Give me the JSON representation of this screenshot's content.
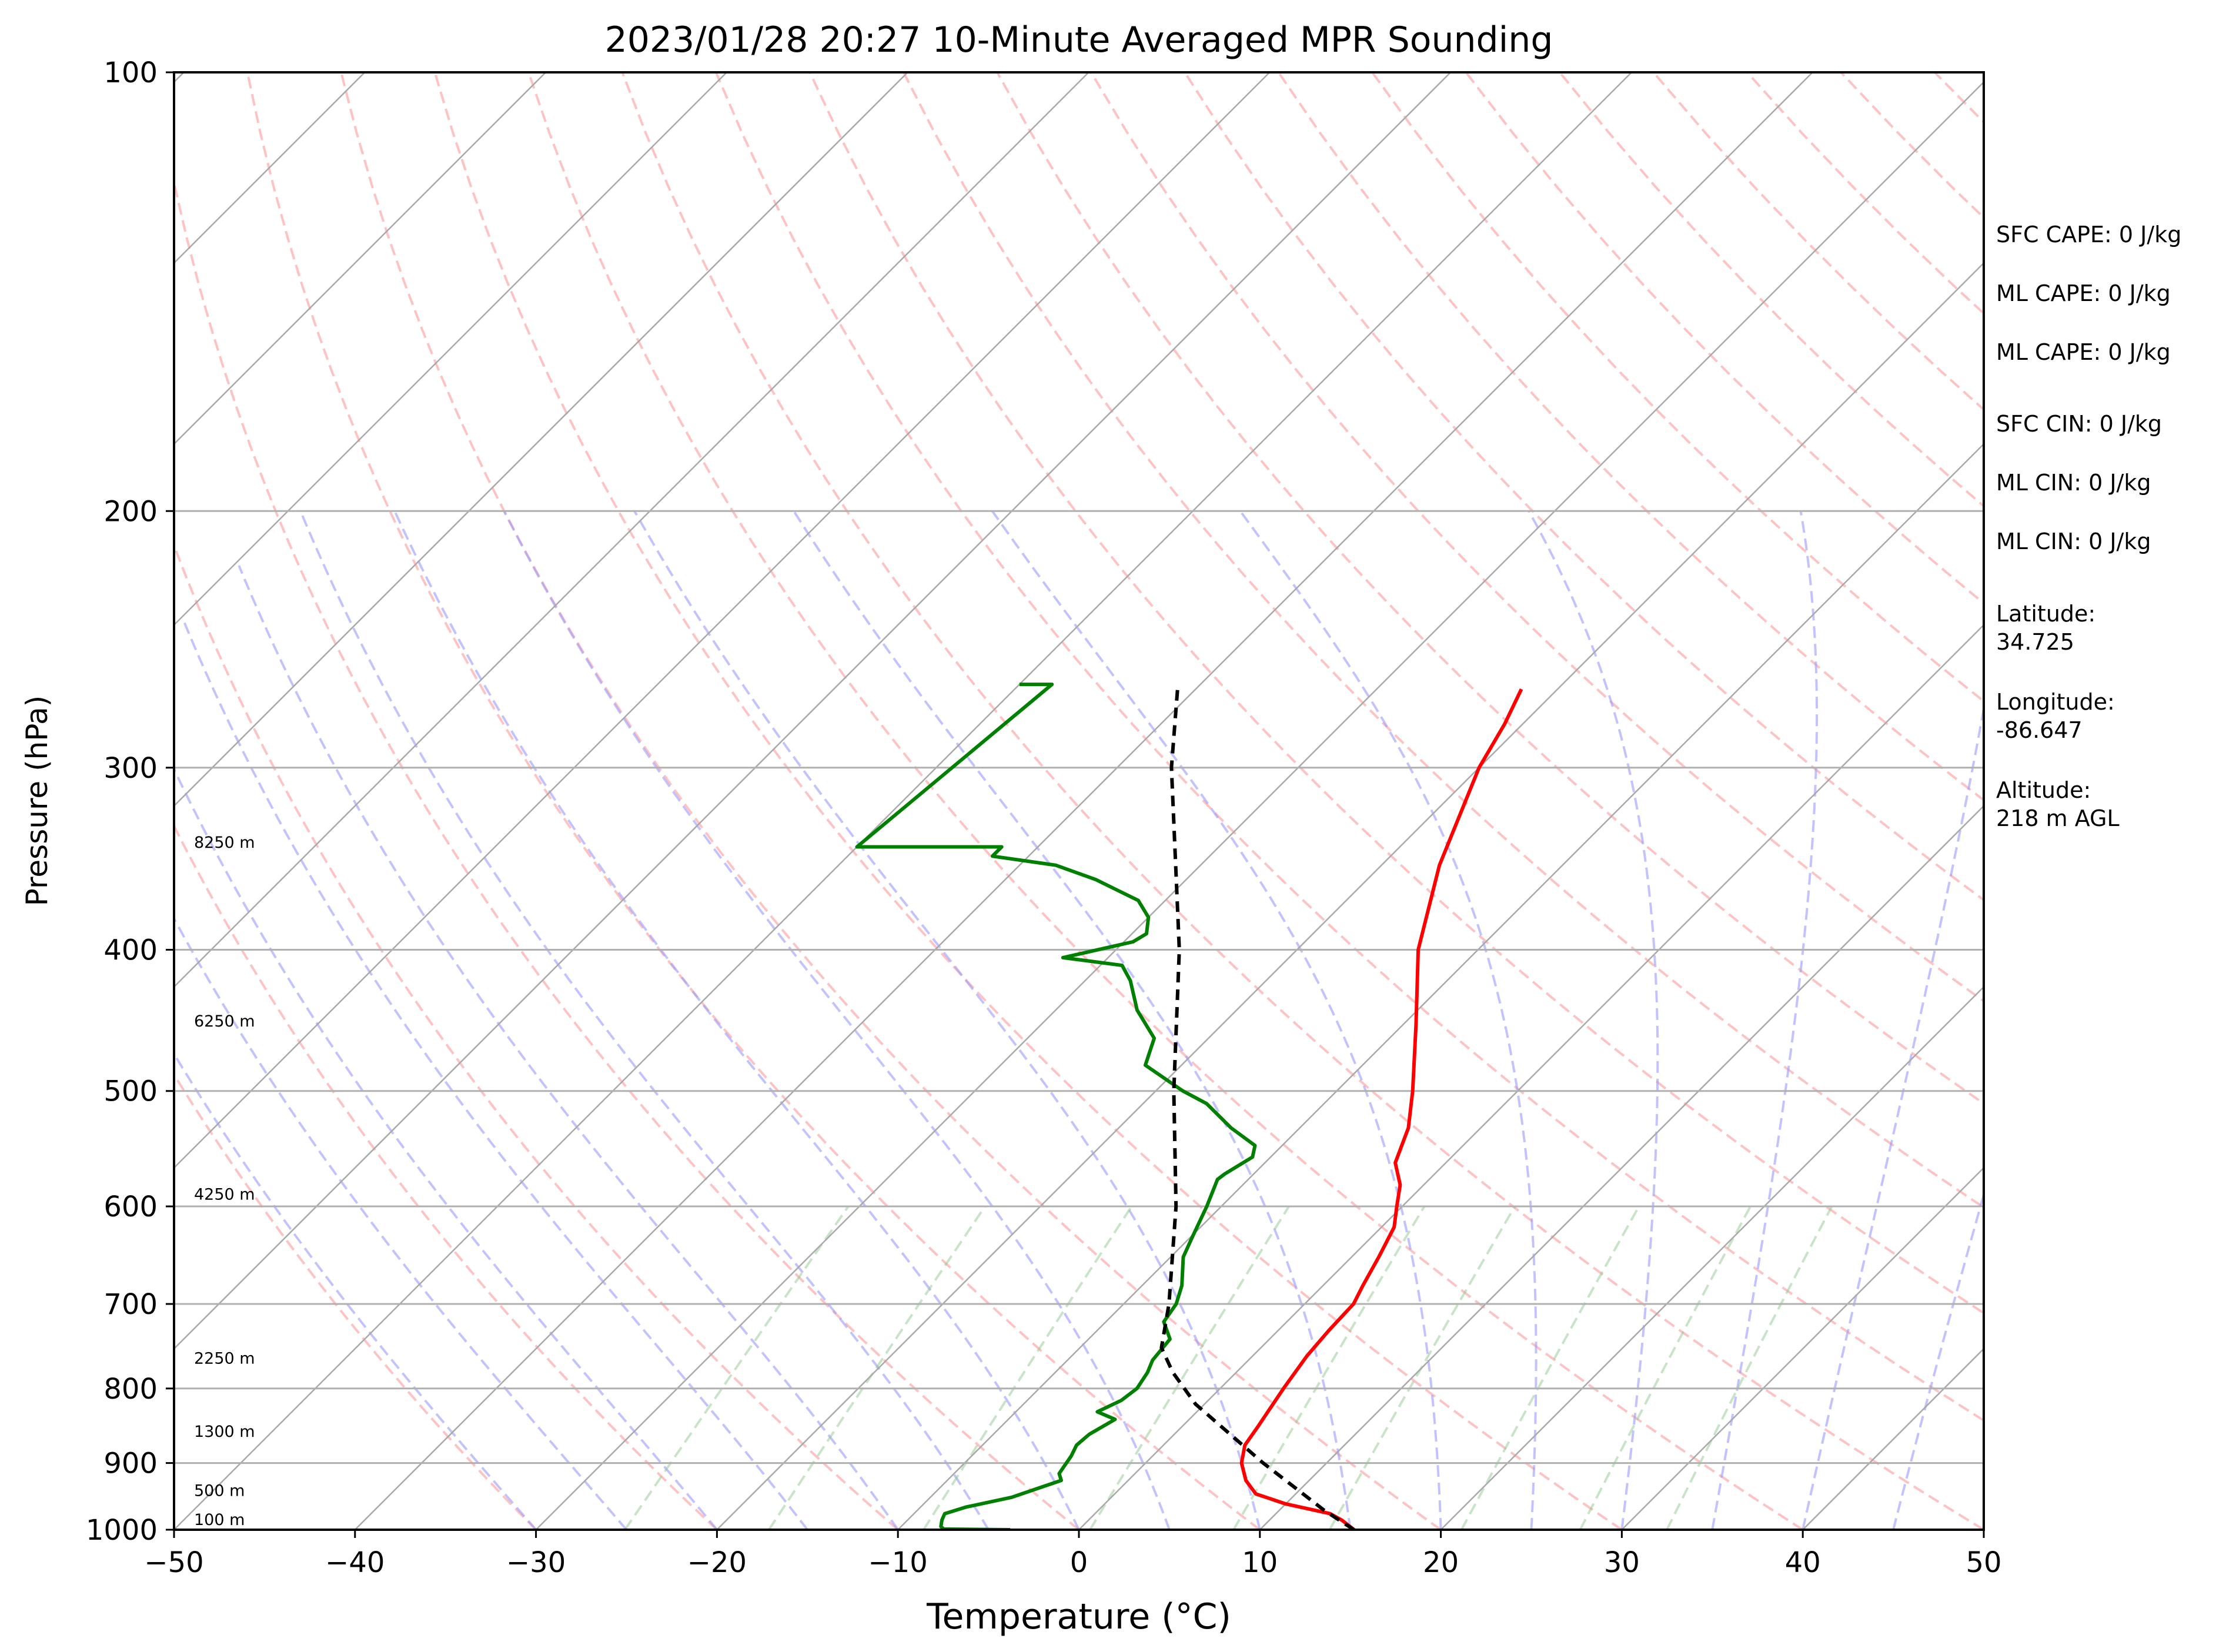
{
  "chart_data": {
    "type": "skew-t",
    "title": "2023/01/28 20:27 10-Minute Averaged MPR Sounding",
    "xlabel": "Temperature (°C)",
    "ylabel": "Pressure (hPa)",
    "xlim": [
      -50,
      50
    ],
    "ylim": [
      1000,
      100
    ],
    "y_scale": "log",
    "x_ticks": [
      "−50",
      "−40",
      "−30",
      "−20",
      "−10",
      "0",
      "10",
      "20",
      "30",
      "40",
      "50"
    ],
    "y_ticks": [
      "100",
      "200",
      "300",
      "400",
      "500",
      "600",
      "700",
      "800",
      "900",
      "1000"
    ],
    "grid": true,
    "background_lines": {
      "isotherms": {
        "color": "#a9a9a9",
        "style": "solid"
      },
      "dry_adiabats": {
        "color": "#ff9999",
        "style": "dashed"
      },
      "moist_adiabats": {
        "color": "#9999ff",
        "style": "dashed"
      },
      "mixing_ratio": {
        "color": "#8fc98f",
        "style": "dashed"
      }
    },
    "series": [
      {
        "role": "temperature",
        "color": "#ff0000",
        "points": [
          {
            "p": 1000,
            "t": 15.2
          },
          {
            "p": 985,
            "t": 14.0
          },
          {
            "p": 975,
            "t": 13.0
          },
          {
            "p": 960,
            "t": 10.0
          },
          {
            "p": 945,
            "t": 7.8
          },
          {
            "p": 925,
            "t": 6.5
          },
          {
            "p": 900,
            "t": 5.3
          },
          {
            "p": 875,
            "t": 4.5
          },
          {
            "p": 850,
            "t": 4.2
          },
          {
            "p": 800,
            "t": 3.5
          },
          {
            "p": 760,
            "t": 3.0
          },
          {
            "p": 730,
            "t": 2.8
          },
          {
            "p": 700,
            "t": 2.7
          },
          {
            "p": 680,
            "t": 2.2
          },
          {
            "p": 650,
            "t": 1.5
          },
          {
            "p": 620,
            "t": 0.7
          },
          {
            "p": 600,
            "t": -0.3
          },
          {
            "p": 580,
            "t": -1.3
          },
          {
            "p": 560,
            "t": -2.8
          },
          {
            "p": 530,
            "t": -4.0
          },
          {
            "p": 500,
            "t": -5.8
          },
          {
            "p": 450,
            "t": -9.3
          },
          {
            "p": 400,
            "t": -13.3
          },
          {
            "p": 350,
            "t": -16.8
          },
          {
            "p": 300,
            "t": -20.0
          },
          {
            "p": 280,
            "t": -21.0
          },
          {
            "p": 265,
            "t": -22.0
          }
        ]
      },
      {
        "role": "dewpoint",
        "color": "#008000",
        "points": [
          {
            "p": 1000,
            "t": -3.8
          },
          {
            "p": 999,
            "t": -7.5
          },
          {
            "p": 995,
            "t": -7.8
          },
          {
            "p": 985,
            "t": -8.1
          },
          {
            "p": 975,
            "t": -8.3
          },
          {
            "p": 965,
            "t": -7.5
          },
          {
            "p": 950,
            "t": -5.5
          },
          {
            "p": 925,
            "t": -3.7
          },
          {
            "p": 915,
            "t": -4.2
          },
          {
            "p": 890,
            "t": -4.5
          },
          {
            "p": 875,
            "t": -4.8
          },
          {
            "p": 860,
            "t": -4.7
          },
          {
            "p": 840,
            "t": -4.1
          },
          {
            "p": 830,
            "t": -5.5
          },
          {
            "p": 815,
            "t": -4.8
          },
          {
            "p": 800,
            "t": -4.6
          },
          {
            "p": 780,
            "t": -4.9
          },
          {
            "p": 765,
            "t": -5.3
          },
          {
            "p": 740,
            "t": -5.5
          },
          {
            "p": 720,
            "t": -6.8
          },
          {
            "p": 700,
            "t": -7.1
          },
          {
            "p": 680,
            "t": -7.8
          },
          {
            "p": 650,
            "t": -9.3
          },
          {
            "p": 630,
            "t": -9.9
          },
          {
            "p": 600,
            "t": -10.8
          },
          {
            "p": 575,
            "t": -11.7
          },
          {
            "p": 570,
            "t": -11.6
          },
          {
            "p": 555,
            "t": -11.0
          },
          {
            "p": 545,
            "t": -11.5
          },
          {
            "p": 530,
            "t": -13.8
          },
          {
            "p": 510,
            "t": -16.5
          },
          {
            "p": 500,
            "t": -18.5
          },
          {
            "p": 480,
            "t": -22.0
          },
          {
            "p": 460,
            "t": -23.0
          },
          {
            "p": 440,
            "t": -25.5
          },
          {
            "p": 420,
            "t": -27.5
          },
          {
            "p": 410,
            "t": -28.8
          },
          {
            "p": 405,
            "t": -32.5
          },
          {
            "p": 395,
            "t": -29.5
          },
          {
            "p": 390,
            "t": -29.2
          },
          {
            "p": 380,
            "t": -30.0
          },
          {
            "p": 370,
            "t": -31.5
          },
          {
            "p": 358,
            "t": -35.0
          },
          {
            "p": 350,
            "t": -38.0
          },
          {
            "p": 345,
            "t": -42.0
          },
          {
            "p": 340,
            "t": -42.0
          },
          {
            "p": 340,
            "t": -50.0
          },
          {
            "p": 263,
            "t": -48.2
          },
          {
            "p": 263,
            "t": -50.0
          }
        ]
      },
      {
        "role": "parcel",
        "color": "#000000",
        "style": "dashed",
        "points": [
          {
            "p": 1000,
            "t": 15.2
          },
          {
            "p": 970,
            "t": 12.5
          },
          {
            "p": 900,
            "t": 6.5
          },
          {
            "p": 820,
            "t": -0.5
          },
          {
            "p": 780,
            "t": -3.5
          },
          {
            "p": 750,
            "t": -5.5
          },
          {
            "p": 700,
            "t": -7.5
          },
          {
            "p": 600,
            "t": -12.5
          },
          {
            "p": 500,
            "t": -19.0
          },
          {
            "p": 400,
            "t": -26.5
          },
          {
            "p": 300,
            "t": -37.0
          },
          {
            "p": 265,
            "t": -41.0
          }
        ]
      }
    ],
    "height_labels": [
      {
        "p": 1000,
        "text": "100 m"
      },
      {
        "p": 955,
        "text": "500 m"
      },
      {
        "p": 870,
        "text": "1300 m"
      },
      {
        "p": 775,
        "text": "2250 m"
      },
      {
        "p": 598,
        "text": "4250 m"
      },
      {
        "p": 455,
        "text": "6250 m"
      },
      {
        "p": 343,
        "text": "8250 m"
      }
    ],
    "annotations": [
      "SFC CAPE: 0 J/kg",
      "ML CAPE: 0 J/kg",
      "ML CAPE: 0 J/kg",
      "SFC CIN: 0 J/kg",
      "ML CIN: 0 J/kg",
      "ML CIN: 0 J/kg",
      "Latitude:\n34.725",
      "Longitude:\n-86.647",
      "Altitude:\n218 m AGL"
    ]
  }
}
